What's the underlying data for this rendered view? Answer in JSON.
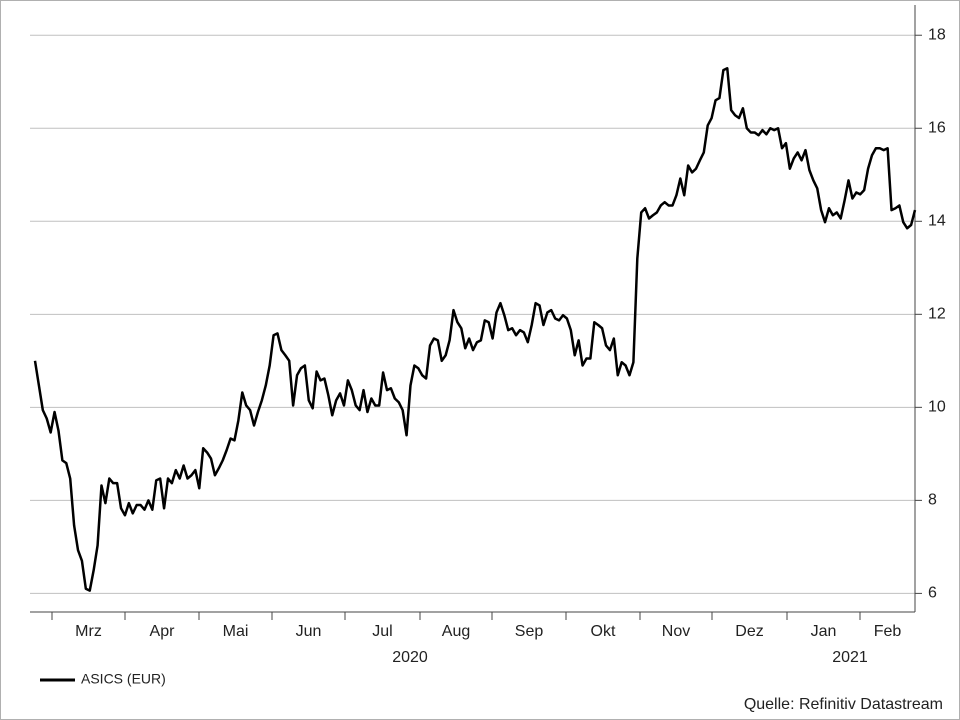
{
  "chart_data": {
    "type": "line",
    "series": [
      {
        "name": "ASICS (EUR)",
        "color": "#000000",
        "values": [
          11.0,
          10.47,
          9.94,
          9.76,
          9.46,
          9.9,
          9.5,
          8.86,
          8.8,
          8.47,
          7.46,
          6.93,
          6.7,
          6.1,
          6.06,
          6.5,
          7.03,
          8.32,
          7.94,
          8.47,
          8.37,
          8.37,
          7.83,
          7.68,
          7.94,
          7.72,
          7.9,
          7.9,
          7.8,
          8.0,
          7.8,
          8.43,
          8.47,
          7.83,
          8.47,
          8.37,
          8.65,
          8.47,
          8.75,
          8.47,
          8.54,
          8.65,
          8.26,
          9.12,
          9.03,
          8.9,
          8.54,
          8.69,
          8.86,
          9.08,
          9.33,
          9.29,
          9.72,
          10.32,
          10.04,
          9.94,
          9.61,
          9.9,
          10.15,
          10.47,
          10.9,
          11.55,
          11.59,
          11.23,
          11.12,
          11.0,
          10.04,
          10.69,
          10.84,
          10.9,
          10.15,
          9.98,
          10.77,
          10.58,
          10.62,
          10.26,
          9.83,
          10.15,
          10.3,
          10.04,
          10.58,
          10.37,
          10.04,
          9.94,
          10.37,
          9.9,
          10.19,
          10.04,
          10.04,
          10.75,
          10.37,
          10.41,
          10.19,
          10.11,
          9.94,
          9.4,
          10.47,
          10.9,
          10.84,
          10.69,
          10.62,
          11.33,
          11.48,
          11.44,
          11.0,
          11.12,
          11.44,
          12.09,
          11.83,
          11.7,
          11.27,
          11.48,
          11.23,
          11.4,
          11.44,
          11.87,
          11.83,
          11.48,
          12.04,
          12.24,
          11.98,
          11.66,
          11.7,
          11.55,
          11.66,
          11.61,
          11.4,
          11.77,
          12.24,
          12.19,
          11.77,
          12.04,
          12.09,
          11.91,
          11.87,
          11.98,
          11.91,
          11.66,
          11.12,
          11.44,
          10.9,
          11.05,
          11.05,
          11.83,
          11.77,
          11.7,
          11.33,
          11.23,
          11.48,
          10.69,
          10.97,
          10.9,
          10.69,
          10.97,
          13.2,
          14.19,
          14.28,
          14.06,
          14.13,
          14.19,
          14.34,
          14.41,
          14.34,
          14.34,
          14.56,
          14.92,
          14.56,
          15.2,
          15.05,
          15.13,
          15.31,
          15.48,
          16.06,
          16.22,
          16.6,
          16.65,
          17.25,
          17.29,
          16.39,
          16.28,
          16.22,
          16.43,
          16.0,
          15.91,
          15.91,
          15.85,
          15.96,
          15.87,
          16.0,
          15.96,
          16.0,
          15.57,
          15.68,
          15.13,
          15.35,
          15.48,
          15.31,
          15.53,
          15.1,
          14.88,
          14.71,
          14.24,
          13.98,
          14.28,
          14.13,
          14.19,
          14.06,
          14.45,
          14.88,
          14.49,
          14.62,
          14.58,
          14.67,
          15.13,
          15.42,
          15.57,
          15.57,
          15.53,
          15.57,
          14.24,
          14.28,
          14.34,
          13.98,
          13.85,
          13.92,
          14.24
        ]
      }
    ],
    "month_labels": [
      "Mrz",
      "Apr",
      "Mai",
      "Jun",
      "Jul",
      "Aug",
      "Sep",
      "Okt",
      "Nov",
      "Dez",
      "Jan",
      "Feb"
    ],
    "year_labels": [
      "2020",
      "2021"
    ],
    "ylim": [
      5.6,
      18.65
    ],
    "yticks": [
      6,
      8,
      10,
      12,
      14,
      16,
      18
    ],
    "grid": true,
    "legend_position": "bottom-left",
    "source": "Quelle: Refinitiv Datastream"
  }
}
